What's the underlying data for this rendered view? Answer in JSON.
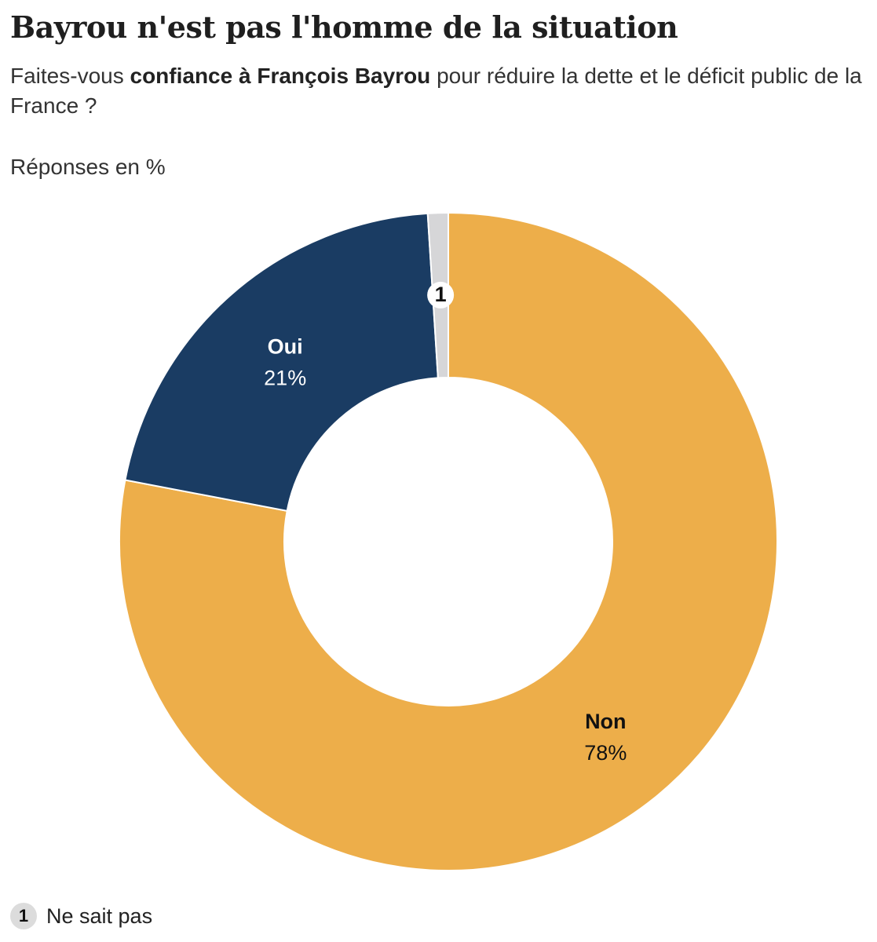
{
  "header": {
    "title": "Bayrou n'est pas l'homme de la situation",
    "subtitle_pre": "Faites-vous ",
    "subtitle_bold": "confiance à François Bayrou",
    "subtitle_post": " pour réduire la dette et le déficit public de la France ?",
    "units": "Réponses en %"
  },
  "chart_data": {
    "type": "pie",
    "donut": true,
    "slices": [
      {
        "name": "Non",
        "value": 78,
        "display": "78%",
        "color": "#edae4a",
        "label_color": "#111111"
      },
      {
        "name": "Oui",
        "value": 21,
        "display": "21%",
        "color": "#1a3c63",
        "label_color": "#ffffff"
      },
      {
        "name": "Ne sait pas",
        "value": 1,
        "display": "",
        "marker": "1",
        "color": "#d6d6d8",
        "label_color": "#111111"
      }
    ]
  },
  "legend": {
    "items": [
      {
        "marker": "1",
        "label": "Ne sait pas"
      }
    ]
  }
}
